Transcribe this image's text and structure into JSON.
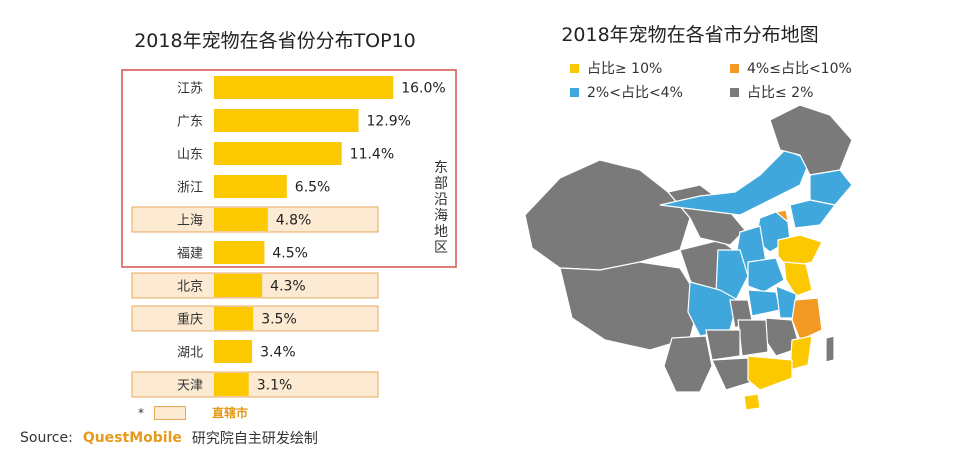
{
  "chart_data": [
    {
      "type": "bar",
      "orientation": "horizontal",
      "title": "2018年宠物在各省份分布TOP10",
      "categories": [
        "江苏",
        "广东",
        "山东",
        "浙江",
        "上海",
        "福建",
        "北京",
        "重庆",
        "湖北",
        "天津"
      ],
      "values": [
        16.0,
        12.9,
        11.4,
        6.5,
        4.8,
        4.5,
        4.3,
        3.5,
        3.4,
        3.1
      ],
      "value_labels": [
        "16.0%",
        "12.9%",
        "11.4%",
        "6.5%",
        "4.8%",
        "4.5%",
        "4.3%",
        "3.5%",
        "3.4%",
        "3.1%"
      ],
      "unit": "%",
      "highlight_group": {
        "label": "东部沿海地区",
        "categories": [
          "江苏",
          "广东",
          "山东",
          "浙江",
          "上海",
          "福建"
        ]
      },
      "municipalities": [
        "上海",
        "北京",
        "重庆",
        "天津"
      ],
      "note": {
        "marker": "*",
        "text": "直辖市"
      },
      "bar_color": "#fcc800"
    },
    {
      "type": "map",
      "title": "2018年宠物在各省市分布地图",
      "legend": [
        {
          "label": "占比≥ 10%",
          "color": "#fcc800"
        },
        {
          "label": "4%≤占比<10%",
          "color": "#f29a24"
        },
        {
          "label": "2%<占比<4%",
          "color": "#3fa7db"
        },
        {
          "label": "占比≤ 2%",
          "color": "#7a7a7a"
        }
      ]
    }
  ],
  "source": {
    "prefix": "Source:",
    "brand": "QuestMobile",
    "suffix": "研究院自主研发绘制"
  }
}
